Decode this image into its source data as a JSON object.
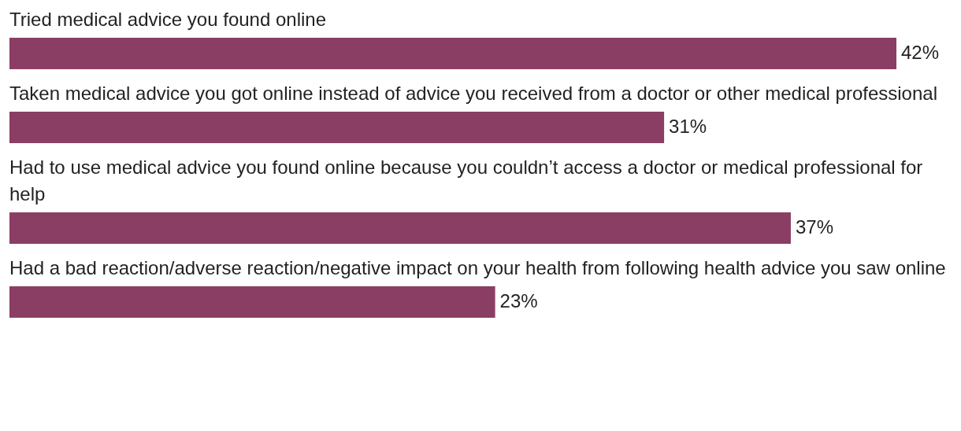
{
  "chart_data": {
    "type": "bar",
    "orientation": "horizontal",
    "categories": [
      "Tried medical advice you found online",
      "Taken medical advice you got online instead of advice you received from a doctor or other medical professional",
      "Had to use medical advice you found online because you couldn’t access a doctor or medical professional for help",
      "Had a bad reaction/adverse reaction/negative impact on your health from following health advice you saw online"
    ],
    "values": [
      42,
      31,
      37,
      23
    ],
    "value_labels": [
      "42%",
      "31%",
      "37%",
      "23%"
    ],
    "color": "#8b3e63"
  }
}
